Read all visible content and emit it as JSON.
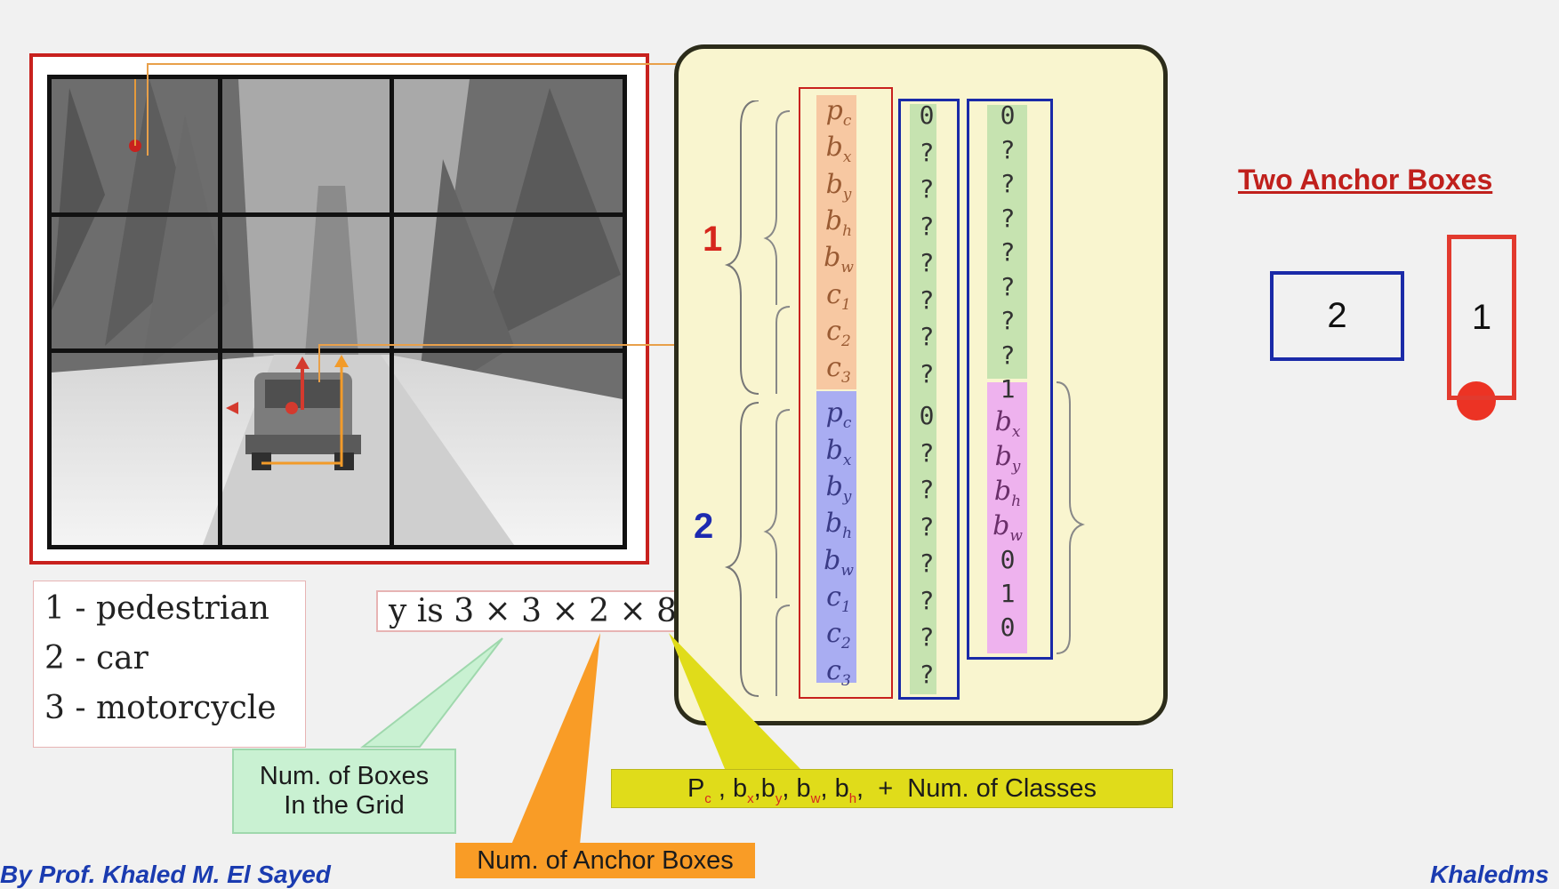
{
  "legend": {
    "items": [
      "1 -  pedestrian",
      "2 -  car",
      "3 -  motorcycle"
    ]
  },
  "formula": {
    "text": "y  is 3 × 3 × 2 × 8"
  },
  "vector": {
    "group1_label": "1",
    "group2_label": "2",
    "col1_symbols": [
      "p",
      "b",
      "b",
      "b",
      "b",
      "c",
      "c",
      "c",
      "p",
      "b",
      "b",
      "b",
      "b",
      "c",
      "c",
      "c"
    ],
    "col1_subs": [
      "c",
      "x",
      "y",
      "h",
      "w",
      "1",
      "2",
      "3",
      "c",
      "x",
      "y",
      "h",
      "w",
      "1",
      "2",
      "3"
    ],
    "col2_values": [
      "0",
      "?",
      "?",
      "?",
      "?",
      "?",
      "?",
      "?",
      "0",
      "?",
      "?",
      "?",
      "?",
      "?",
      "?",
      "?"
    ],
    "col3_values": [
      "0",
      "?",
      "?",
      "?",
      "?",
      "?",
      "?",
      "?",
      "1"
    ],
    "col3_symbols": [
      "b",
      "b",
      "b",
      "b"
    ],
    "col3_subs": [
      "x",
      "y",
      "h",
      "w"
    ],
    "col3_tail": [
      "0",
      "1",
      "0"
    ]
  },
  "anchors": {
    "title": "Two Anchor Boxes",
    "box_2": "2",
    "box_1": "1"
  },
  "callouts": {
    "boxes_line1": "Num. of Boxes",
    "boxes_line2": "In the Grid",
    "anchors": "Num. of Anchor Boxes",
    "classes": {
      "p": "P",
      "p_sub": "c",
      "bx": "b",
      "bx_sub": "x",
      "by": "b",
      "by_sub": "y",
      "bw": "b",
      "bw_sub": "w",
      "bh": "b",
      "bh_sub": "h",
      "plus": "+",
      "rest": "Num. of Classes",
      "sep": ","
    }
  },
  "footer": {
    "left": "By Prof. Khaled M. El Sayed",
    "right": "Khaledms"
  },
  "colors": {
    "frame_red": "#c8211e",
    "peach": "#f7c8a2",
    "lavender": "#a9adf2",
    "green": "#c6e3b0",
    "pink": "#eeb2ee",
    "blue_frame": "#1a2aa8",
    "panel": "#f9f5cf"
  }
}
